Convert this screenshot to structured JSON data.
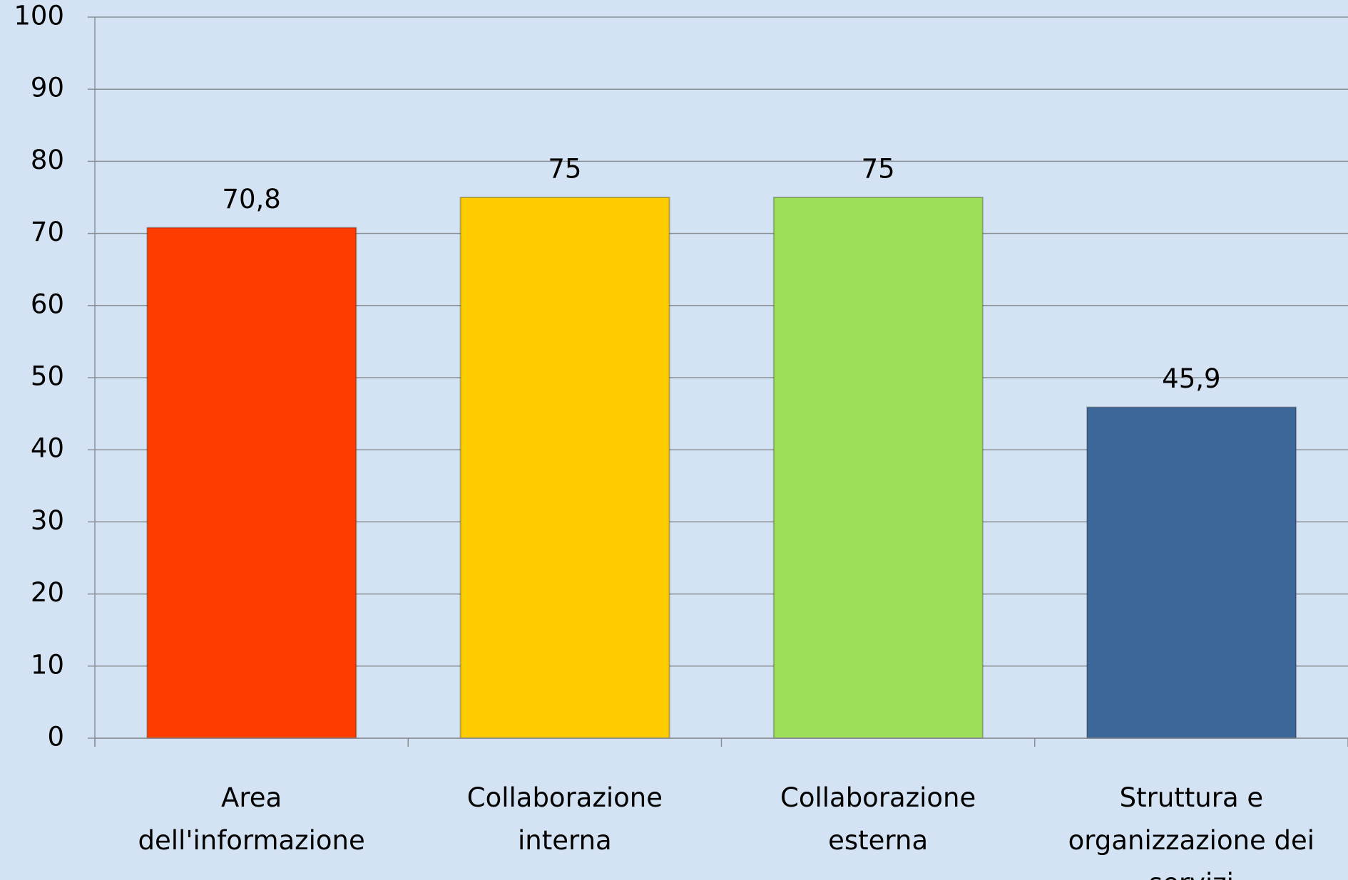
{
  "chart_data": {
    "type": "bar",
    "categories": [
      "Area dell'informazione",
      "Collaborazione interna",
      "Collaborazione esterna",
      "Struttura e organizzazione dei servizi"
    ],
    "values": [
      70.8,
      75,
      75,
      45.9
    ],
    "value_labels": [
      "70,8",
      "75",
      "75",
      "45,9"
    ],
    "colors": [
      "#ff3c00",
      "#ffcc00",
      "#9edf5a",
      "#3d6699"
    ],
    "ylim": [
      0,
      100
    ],
    "yticks": [
      0,
      10,
      20,
      30,
      40,
      50,
      60,
      70,
      80,
      90,
      100
    ],
    "grid": true
  }
}
